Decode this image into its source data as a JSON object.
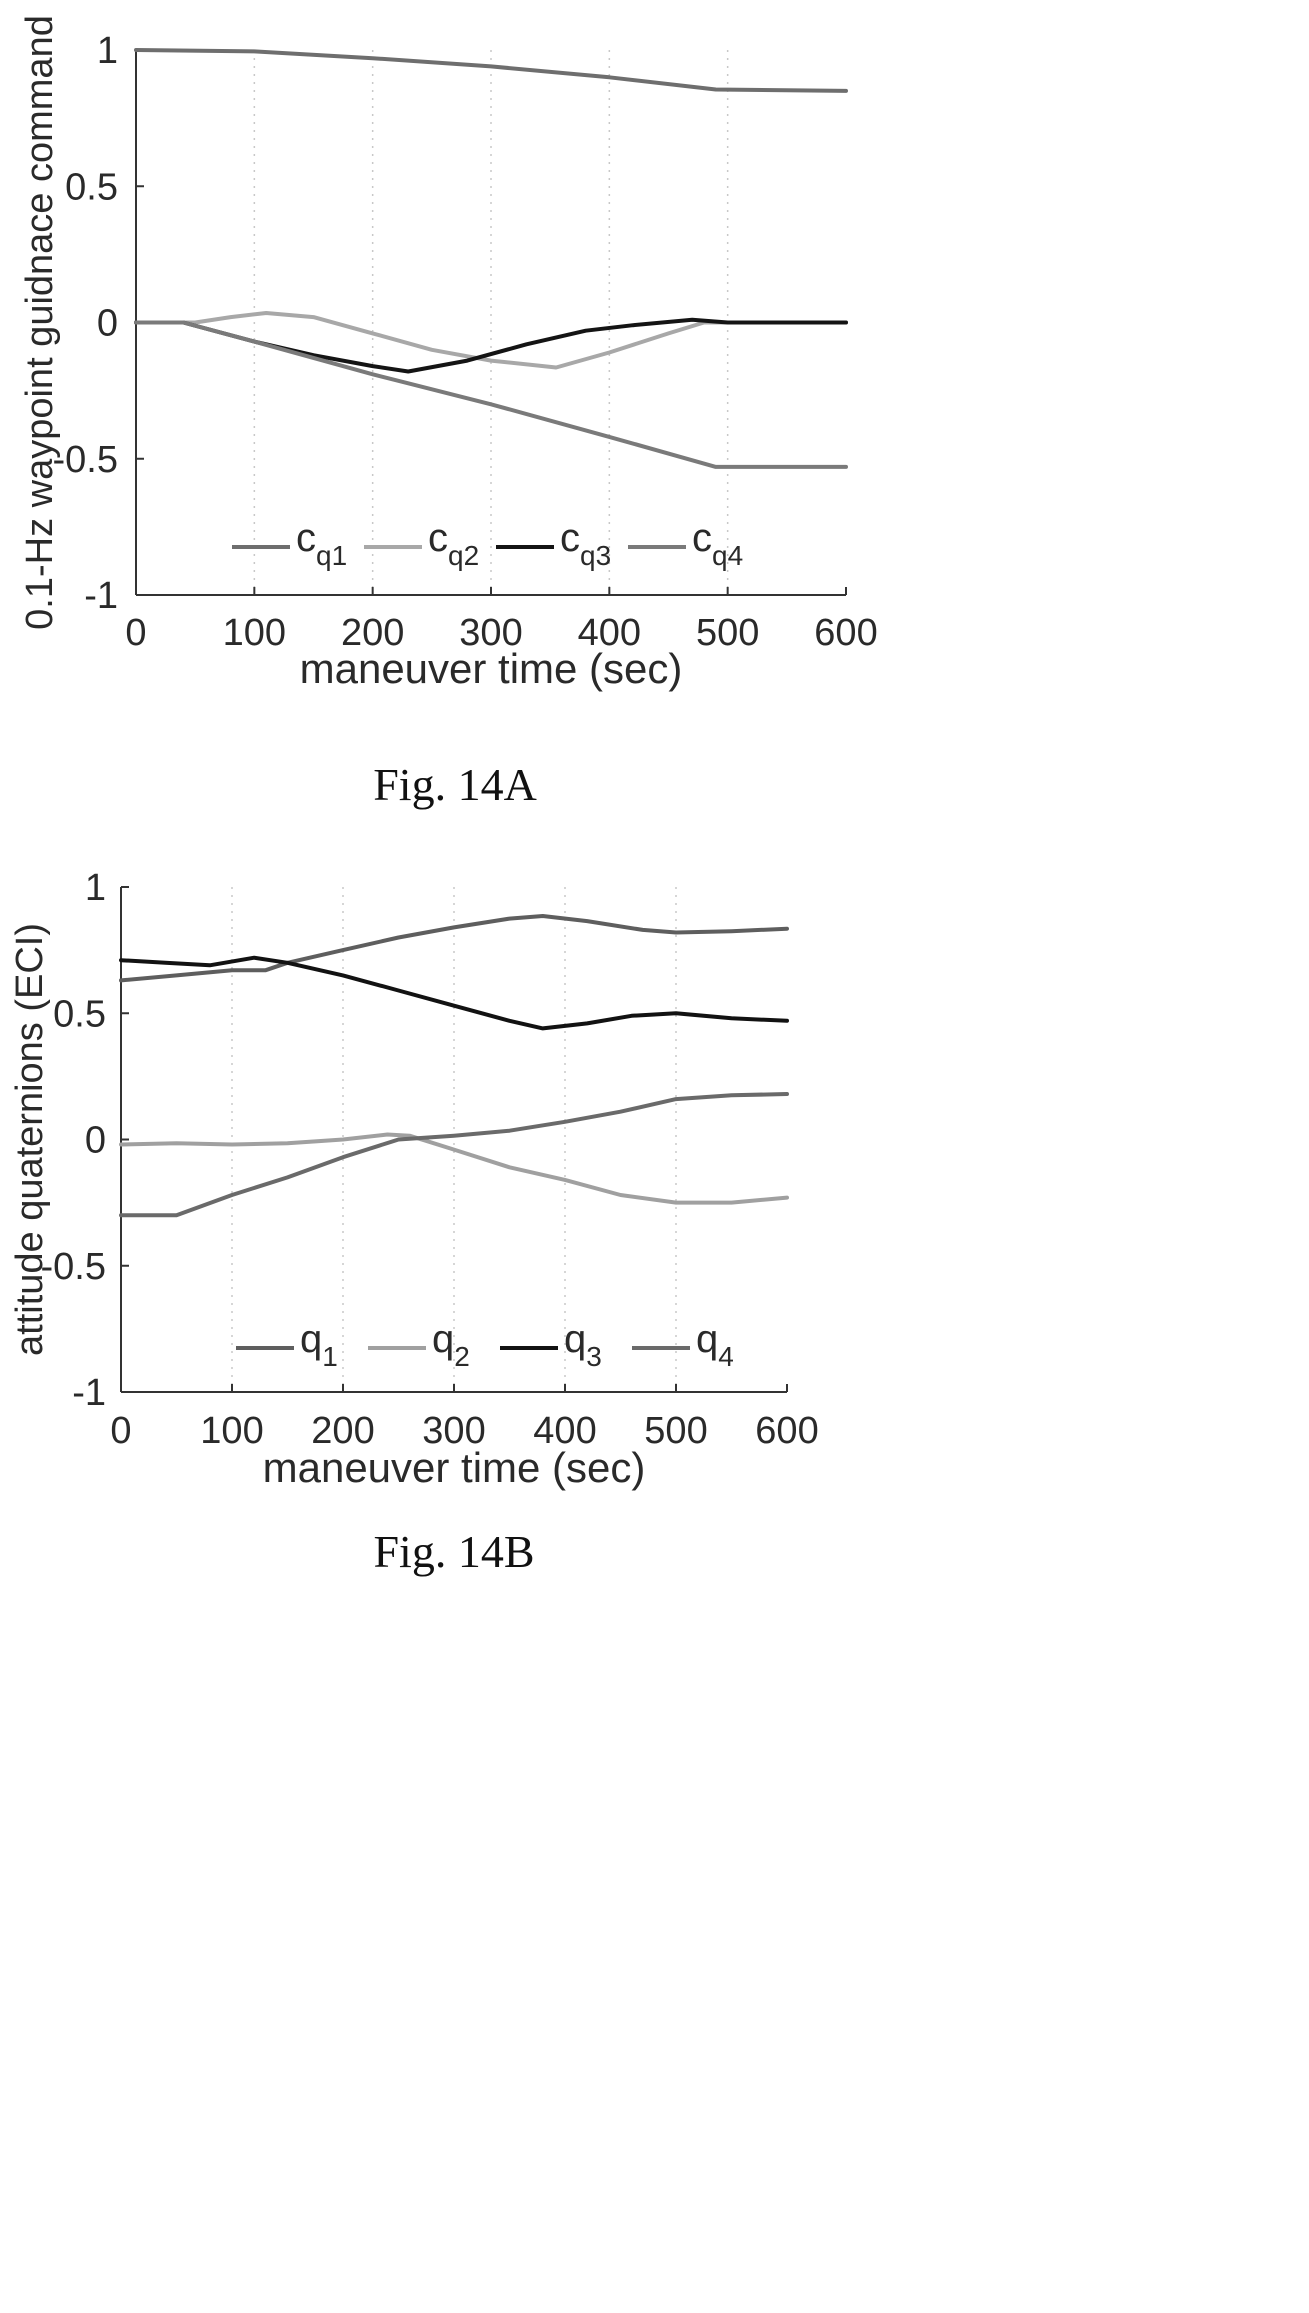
{
  "chart_data": [
    {
      "type": "line",
      "caption": "Fig. 14A",
      "xlabel": "maneuver time (sec)",
      "ylabel": "0.1-Hz waypoint guidnace command",
      "xlim": [
        0,
        600
      ],
      "ylim": [
        -1,
        1
      ],
      "xticks": [
        "0",
        "100",
        "200",
        "300",
        "400",
        "500",
        "600"
      ],
      "yticks": [
        "-1",
        "-0.5",
        "0",
        "0.5",
        "1"
      ],
      "grid": "vertical dotted",
      "legend_position": "bottom-center",
      "series": [
        {
          "name": "c",
          "sub": "q1",
          "color": "#6e6e6e",
          "x": [
            0,
            100,
            200,
            300,
            400,
            490,
            600
          ],
          "y": [
            1.0,
            0.995,
            0.97,
            0.94,
            0.9,
            0.855,
            0.85
          ]
        },
        {
          "name": "c",
          "sub": "q2",
          "color": "#a8a8a8",
          "x": [
            0,
            50,
            80,
            110,
            150,
            200,
            250,
            300,
            355,
            400,
            450,
            480,
            600
          ],
          "y": [
            0.0,
            0.0,
            0.02,
            0.035,
            0.02,
            -0.04,
            -0.1,
            -0.14,
            -0.165,
            -0.11,
            -0.04,
            0.0,
            0.0
          ]
        },
        {
          "name": "c",
          "sub": "q3",
          "color": "#141414",
          "x": [
            0,
            40,
            100,
            150,
            200,
            230,
            280,
            330,
            380,
            420,
            470,
            500,
            600
          ],
          "y": [
            0.0,
            0.0,
            -0.07,
            -0.12,
            -0.16,
            -0.18,
            -0.14,
            -0.08,
            -0.03,
            -0.01,
            0.01,
            0.0,
            0.0
          ]
        },
        {
          "name": "c",
          "sub": "q4",
          "color": "#7a7a7a",
          "x": [
            0,
            40,
            100,
            200,
            300,
            400,
            490,
            600
          ],
          "y": [
            0.0,
            0.0,
            -0.07,
            -0.19,
            -0.3,
            -0.42,
            -0.53,
            -0.53
          ]
        }
      ]
    },
    {
      "type": "line",
      "caption": "Fig. 14B",
      "xlabel": "maneuver time (sec)",
      "ylabel": "attitude quaternions (ECI)",
      "xlim": [
        0,
        600
      ],
      "ylim": [
        -1,
        1
      ],
      "xticks": [
        "0",
        "100",
        "200",
        "300",
        "400",
        "500",
        "600"
      ],
      "yticks": [
        "-1",
        "-0.5",
        "0",
        "0.5",
        "1"
      ],
      "grid": "vertical dotted",
      "legend_position": "bottom-center",
      "series": [
        {
          "name": "q",
          "sub": "1",
          "color": "#5e5e5e",
          "x": [
            0,
            50,
            100,
            130,
            150,
            200,
            250,
            300,
            350,
            380,
            420,
            470,
            500,
            550,
            600
          ],
          "y": [
            0.63,
            0.65,
            0.67,
            0.67,
            0.7,
            0.75,
            0.8,
            0.84,
            0.875,
            0.885,
            0.865,
            0.83,
            0.82,
            0.825,
            0.835
          ]
        },
        {
          "name": "q",
          "sub": "2",
          "color": "#a0a0a0",
          "x": [
            0,
            50,
            100,
            150,
            200,
            240,
            260,
            300,
            350,
            400,
            450,
            500,
            550,
            600
          ],
          "y": [
            -0.02,
            -0.015,
            -0.02,
            -0.015,
            0.0,
            0.02,
            0.015,
            -0.04,
            -0.11,
            -0.16,
            -0.22,
            -0.25,
            -0.25,
            -0.23
          ]
        },
        {
          "name": "q",
          "sub": "3",
          "color": "#121212",
          "x": [
            0,
            40,
            80,
            120,
            150,
            200,
            250,
            300,
            350,
            380,
            420,
            460,
            500,
            550,
            600
          ],
          "y": [
            0.71,
            0.7,
            0.69,
            0.72,
            0.7,
            0.65,
            0.59,
            0.53,
            0.47,
            0.44,
            0.46,
            0.49,
            0.5,
            0.48,
            0.47
          ]
        },
        {
          "name": "q",
          "sub": "4",
          "color": "#6a6a6a",
          "x": [
            0,
            50,
            100,
            150,
            200,
            250,
            300,
            350,
            400,
            450,
            500,
            550,
            600
          ],
          "y": [
            -0.3,
            -0.3,
            -0.22,
            -0.15,
            -0.07,
            0.0,
            0.015,
            0.035,
            0.07,
            0.11,
            0.16,
            0.175,
            0.18
          ]
        }
      ]
    }
  ]
}
